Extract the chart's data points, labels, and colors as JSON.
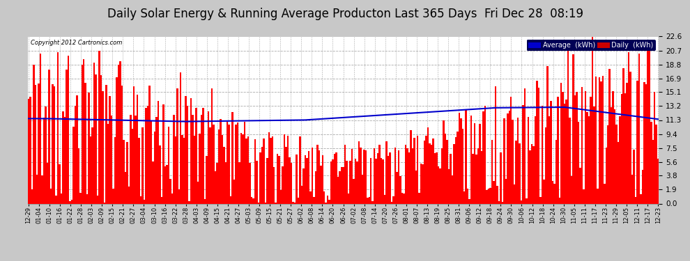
{
  "title": "Daily Solar Energy & Running Average Producton Last 365 Days  Fri Dec 28  08:19",
  "copyright": "Copyright 2012 Cartronics.com",
  "yticks": [
    0.0,
    1.9,
    3.8,
    5.6,
    7.5,
    9.4,
    11.3,
    13.2,
    15.1,
    16.9,
    18.8,
    20.7,
    22.6
  ],
  "ymax": 22.6,
  "ymin": 0.0,
  "bar_color": "#ff0000",
  "avg_line_color": "#0000cc",
  "bg_color": "#c8c8c8",
  "plot_bg_color": "#ffffff",
  "grid_color": "#aaaaaa",
  "title_fontsize": 12,
  "legend_avg_label": "Average  (kWh)",
  "legend_daily_label": "Daily  (kWh)",
  "legend_avg_bg": "#0000cc",
  "legend_daily_bg": "#cc0000",
  "x_tick_labels": [
    "12-29",
    "01-04",
    "01-10",
    "01-16",
    "01-22",
    "01-28",
    "02-03",
    "02-09",
    "02-15",
    "02-21",
    "02-27",
    "03-04",
    "03-10",
    "03-16",
    "03-22",
    "03-28",
    "04-03",
    "04-09",
    "04-15",
    "04-21",
    "04-27",
    "05-03",
    "05-09",
    "05-15",
    "05-21",
    "05-27",
    "06-02",
    "06-08",
    "06-14",
    "06-20",
    "06-26",
    "07-02",
    "07-08",
    "07-14",
    "07-20",
    "07-26",
    "08-01",
    "08-07",
    "08-13",
    "08-19",
    "08-25",
    "08-31",
    "09-06",
    "09-12",
    "09-18",
    "09-24",
    "09-30",
    "10-06",
    "10-12",
    "10-18",
    "10-24",
    "10-30",
    "11-05",
    "11-11",
    "11-17",
    "11-23",
    "11-29",
    "12-05",
    "12-11",
    "12-17",
    "12-23"
  ],
  "num_days": 365,
  "seed": 42
}
